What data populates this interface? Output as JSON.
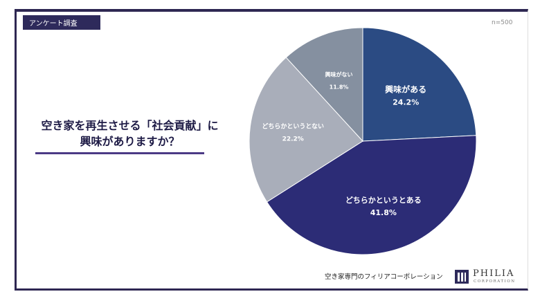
{
  "header": {
    "tag": "アンケート調査",
    "sample_size": "n=500"
  },
  "question": {
    "line1": "空き家を再生させる「社会貢献」に",
    "line2": "興味がありますか？"
  },
  "footer": {
    "company": "空き家専門のフィリアコーポレーション",
    "logo_name": "PHILIA",
    "logo_sub": "CORPORATION"
  },
  "chart_data": {
    "type": "pie",
    "slices": [
      {
        "label": "興味がある",
        "value": 24.2,
        "display": "24.2%",
        "color": "#2b4b83"
      },
      {
        "label": "どちらかというとある",
        "value": 41.8,
        "display": "41.8%",
        "color": "#2c2c76"
      },
      {
        "label": "どちらかというとない",
        "value": 22.2,
        "display": "22.2%",
        "color": "#a9aeba"
      },
      {
        "label": "興味がない",
        "value": 11.8,
        "display": "11.8%",
        "color": "#8590a0"
      }
    ],
    "start_angle": "12 o'clock",
    "direction": "clockwise"
  }
}
